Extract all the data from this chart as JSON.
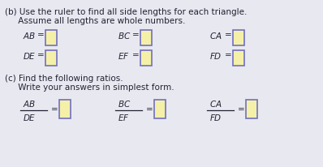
{
  "bg_color": "#e8e8f0",
  "text_color": "#222233",
  "box_fill": "#f5f0a8",
  "box_edge": "#7070c0",
  "font_size_main": 7.5,
  "font_size_label": 7.5,
  "figsize": [
    3.98,
    2.07
  ],
  "dpi": 100,
  "line1": "(b) Use the ruler to find all side lengths for each triangle.",
  "line2": "     Assume all lengths are whole numbers.",
  "line3": "(c) Find the following ratios.",
  "line4": "     Write your answers in simplest form."
}
